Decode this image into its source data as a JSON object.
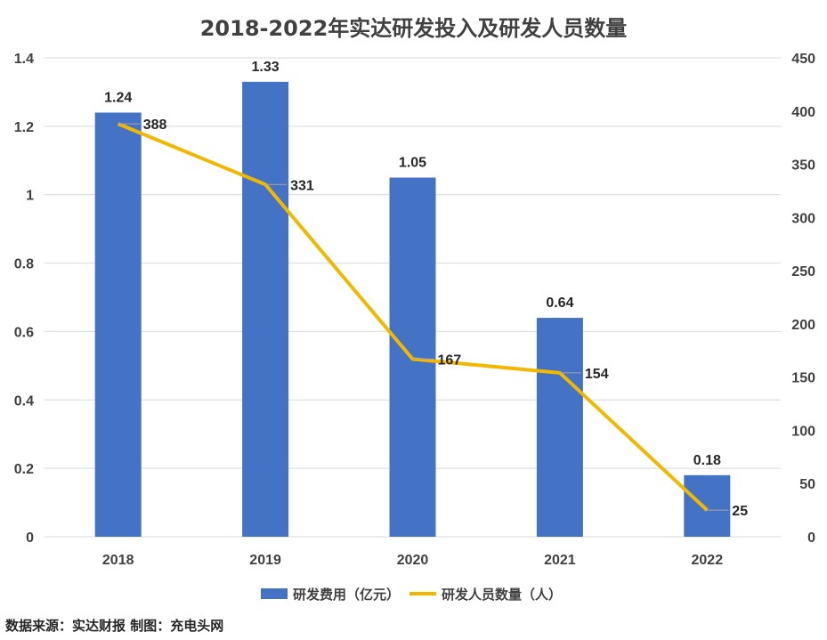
{
  "chart_data": {
    "type": "bar",
    "title": "2018-2022年实达研发投入及研发人员数量",
    "categories": [
      "2018",
      "2019",
      "2020",
      "2021",
      "2022"
    ],
    "series": [
      {
        "name": "研发费用（亿元）",
        "type": "bar",
        "axis": "left",
        "color": "#4472C4",
        "values": [
          1.24,
          1.33,
          1.05,
          0.64,
          0.18
        ]
      },
      {
        "name": "研发人员数量（人）",
        "type": "line",
        "axis": "right",
        "color": "#F2B800",
        "values": [
          388,
          331,
          167,
          154,
          25
        ]
      }
    ],
    "y_left": {
      "min": 0,
      "max": 1.4,
      "ticks": [
        "0",
        "0.2",
        "0.4",
        "0.6",
        "0.8",
        "1",
        "1.2",
        "1.4"
      ]
    },
    "y_right": {
      "min": 0,
      "max": 450,
      "ticks": [
        "0",
        "50",
        "100",
        "150",
        "200",
        "250",
        "300",
        "350",
        "400",
        "450"
      ]
    },
    "bar_labels": [
      "1.24",
      "1.33",
      "1.05",
      "0.64",
      "0.18"
    ],
    "line_labels": [
      "388",
      "331",
      "167",
      "154",
      "25"
    ],
    "grid": true,
    "legend_position": "bottom",
    "source_note": "数据来源：实达财报  制图：充电头网"
  }
}
